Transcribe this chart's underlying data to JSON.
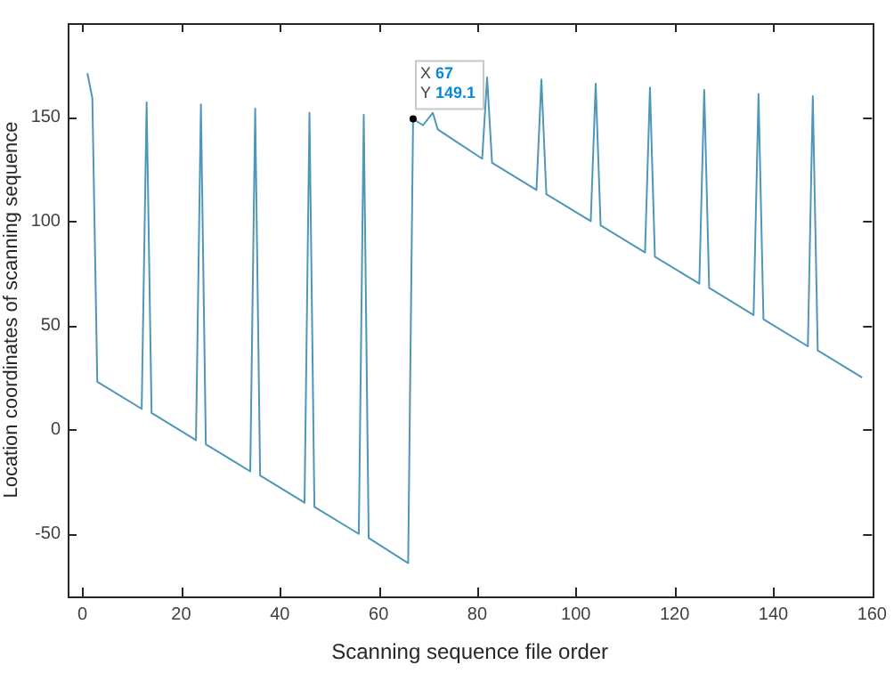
{
  "chart_data": {
    "type": "line",
    "xlabel": "Scanning sequence file order",
    "ylabel": "Location coordinates of scanning sequence",
    "xlim": [
      -3,
      160
    ],
    "xticks": [
      0,
      20,
      40,
      60,
      80,
      100,
      120,
      140,
      160
    ],
    "ylim": [
      -80,
      195
    ],
    "yticks": [
      -50,
      0,
      50,
      100,
      150
    ],
    "grid": false,
    "legend": false,
    "marker": "none",
    "line_style": "solid",
    "series": [
      {
        "color": "#4f97b8",
        "x": [
          1,
          2,
          3,
          12,
          13,
          14,
          23,
          24,
          25,
          34,
          35,
          36,
          45,
          46,
          47,
          56,
          57,
          58,
          66,
          67,
          69,
          71,
          72,
          81,
          82,
          83,
          92,
          93,
          94,
          103,
          104,
          105,
          114,
          115,
          116,
          125,
          126,
          127,
          136,
          137,
          138,
          147,
          148,
          149,
          158
        ],
        "values": [
          171,
          159,
          23,
          10,
          157,
          8,
          -5,
          156,
          -7,
          -20,
          154,
          -22,
          -35,
          152,
          -37,
          -50,
          151,
          -52,
          -64,
          149.1,
          146,
          152,
          144,
          130,
          169,
          128,
          115,
          168,
          113,
          100,
          166,
          98,
          85,
          164,
          83,
          70,
          163,
          68,
          55,
          161,
          53,
          40,
          160,
          38,
          25
        ]
      }
    ],
    "annotations": [
      {
        "text": "X 67\nY 149.1",
        "x": 67,
        "y": 149.1
      }
    ]
  }
}
